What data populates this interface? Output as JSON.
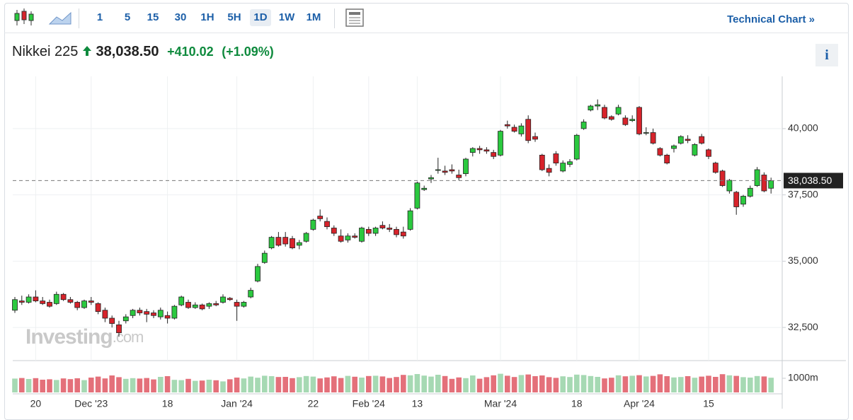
{
  "toolbar": {
    "intervals": [
      "1",
      "5",
      "15",
      "30",
      "1H",
      "5H",
      "1D",
      "1W",
      "1M"
    ],
    "active_interval": "1D",
    "technical_link": "Technical Chart »"
  },
  "header": {
    "name": "Nikkei 225",
    "price": "38,038.50",
    "change": "+410.02",
    "change_pct": "(+1.09%)",
    "info": "i"
  },
  "chart_data": {
    "type": "candlestick",
    "watermark": "Investing",
    "watermark_suffix": ".com",
    "categories": [
      null,
      null,
      null,
      "20",
      null,
      null,
      null,
      null,
      null,
      null,
      null,
      "Dec '23",
      null,
      null,
      null,
      null,
      null,
      null,
      null,
      null,
      null,
      null,
      "18",
      null,
      null,
      null,
      null,
      null,
      null,
      null,
      null,
      null,
      "Jan '24",
      null,
      null,
      null,
      null,
      null,
      null,
      null,
      null,
      null,
      null,
      "22",
      null,
      null,
      null,
      null,
      null,
      null,
      null,
      "Feb '24",
      null,
      null,
      null,
      null,
      null,
      null,
      "13",
      null,
      null,
      null,
      null,
      null,
      null,
      null,
      null,
      null,
      null,
      null,
      "Mar '24",
      null,
      null,
      null,
      null,
      null,
      null,
      null,
      null,
      null,
      null,
      "18",
      null,
      null,
      null,
      null,
      null,
      null,
      null,
      null,
      "Apr '24",
      null,
      null,
      null,
      null,
      null,
      null,
      null,
      null,
      null,
      "15",
      null,
      null,
      null,
      null,
      null,
      null,
      null,
      null,
      null
    ],
    "ohlc": [
      [
        33150,
        33650,
        33050,
        33550
      ],
      [
        33500,
        33700,
        33350,
        33450
      ],
      [
        33450,
        33750,
        33400,
        33650
      ],
      [
        33650,
        33900,
        33450,
        33500
      ],
      [
        33500,
        33650,
        33350,
        33400
      ],
      [
        33450,
        33550,
        33250,
        33300
      ],
      [
        33400,
        33850,
        33350,
        33750
      ],
      [
        33750,
        33800,
        33500,
        33550
      ],
      [
        33550,
        33650,
        33400,
        33450
      ],
      [
        33450,
        33500,
        33150,
        33250
      ],
      [
        33250,
        33550,
        33200,
        33500
      ],
      [
        33500,
        33650,
        33350,
        33450
      ],
      [
        33400,
        33450,
        33000,
        33100
      ],
      [
        33150,
        33250,
        32700,
        32850
      ],
      [
        32850,
        32950,
        32500,
        32650
      ],
      [
        32600,
        32750,
        32150,
        32300
      ],
      [
        32750,
        33000,
        32650,
        32900
      ],
      [
        32950,
        33200,
        32850,
        33150
      ],
      [
        33150,
        33250,
        32950,
        33050
      ],
      [
        33100,
        33200,
        32700,
        33000
      ],
      [
        33050,
        33150,
        32850,
        32950
      ],
      [
        32900,
        33250,
        32800,
        33150
      ],
      [
        32950,
        33100,
        32650,
        32850
      ],
      [
        32850,
        33350,
        32800,
        33300
      ],
      [
        33350,
        33700,
        33300,
        33650
      ],
      [
        33450,
        33550,
        33200,
        33250
      ],
      [
        33250,
        33450,
        33200,
        33350
      ],
      [
        33350,
        33400,
        33150,
        33200
      ],
      [
        33300,
        33450,
        33200,
        33400
      ],
      [
        33400,
        33500,
        33300,
        33350
      ],
      [
        33450,
        33750,
        33400,
        33650
      ],
      [
        33600,
        33650,
        33500,
        33550
      ],
      [
        33450,
        33550,
        32750,
        33300
      ],
      [
        33300,
        33500,
        33250,
        33450
      ],
      [
        33650,
        34000,
        33600,
        33900
      ],
      [
        34250,
        34900,
        34200,
        34800
      ],
      [
        34950,
        35400,
        34900,
        35300
      ],
      [
        35500,
        35950,
        35450,
        35900
      ],
      [
        35900,
        36100,
        35550,
        35600
      ],
      [
        35900,
        36100,
        35550,
        35650
      ],
      [
        35850,
        35950,
        35450,
        35500
      ],
      [
        35600,
        35800,
        35450,
        35700
      ],
      [
        35750,
        36100,
        35700,
        36050
      ],
      [
        36200,
        36600,
        36150,
        36550
      ],
      [
        36700,
        36950,
        36500,
        36600
      ],
      [
        36500,
        36650,
        36200,
        36300
      ],
      [
        36250,
        36350,
        35950,
        36050
      ],
      [
        35950,
        36200,
        35700,
        35750
      ],
      [
        35800,
        36050,
        35700,
        35950
      ],
      [
        35950,
        36050,
        35850,
        35900
      ],
      [
        35750,
        36300,
        35700,
        36250
      ],
      [
        36200,
        36300,
        35950,
        36050
      ],
      [
        36050,
        36300,
        35950,
        36250
      ],
      [
        36350,
        36500,
        36200,
        36250
      ],
      [
        36250,
        36400,
        36100,
        36200
      ],
      [
        36200,
        36300,
        35900,
        36000
      ],
      [
        36100,
        36300,
        35850,
        35950
      ],
      [
        36200,
        37000,
        36150,
        36900
      ],
      [
        37000,
        38000,
        36950,
        37950
      ],
      [
        37700,
        37850,
        37650,
        37750
      ],
      [
        38100,
        38250,
        37950,
        38150
      ],
      [
        38450,
        38900,
        38300,
        38450
      ],
      [
        38400,
        38600,
        38250,
        38350
      ],
      [
        38450,
        38650,
        38300,
        38400
      ],
      [
        38250,
        38450,
        38050,
        38150
      ],
      [
        38300,
        38900,
        38200,
        38850
      ],
      [
        39100,
        39300,
        38950,
        39250
      ],
      [
        39250,
        39350,
        39050,
        39200
      ],
      [
        39200,
        39300,
        39050,
        39150
      ],
      [
        39100,
        39200,
        38850,
        38950
      ],
      [
        39000,
        39950,
        38950,
        39900
      ],
      [
        40150,
        40300,
        40000,
        40100
      ],
      [
        40050,
        40150,
        39850,
        39900
      ],
      [
        39800,
        40200,
        39700,
        40100
      ],
      [
        40350,
        40500,
        39450,
        39550
      ],
      [
        39700,
        39850,
        39500,
        39600
      ],
      [
        39000,
        39050,
        38400,
        38450
      ],
      [
        38500,
        38650,
        38200,
        38350
      ],
      [
        39050,
        39150,
        38600,
        38700
      ],
      [
        38400,
        38800,
        38350,
        38700
      ],
      [
        38650,
        38850,
        38550,
        38750
      ],
      [
        38850,
        39800,
        38800,
        39750
      ],
      [
        40000,
        40350,
        39950,
        40250
      ],
      [
        40700,
        40900,
        40650,
        40850
      ],
      [
        40850,
        41100,
        40700,
        40900
      ],
      [
        40800,
        40900,
        40350,
        40400
      ],
      [
        40450,
        40500,
        40300,
        40350
      ],
      [
        40550,
        40900,
        40500,
        40800
      ],
      [
        40400,
        40500,
        40100,
        40150
      ],
      [
        40300,
        40500,
        40250,
        40350
      ],
      [
        40800,
        40850,
        39750,
        39800
      ],
      [
        39850,
        40050,
        39750,
        39850
      ],
      [
        39850,
        40000,
        39400,
        39450
      ],
      [
        39250,
        39300,
        38950,
        39000
      ],
      [
        39000,
        39050,
        38650,
        38700
      ],
      [
        39250,
        39400,
        39100,
        39350
      ],
      [
        39450,
        39750,
        39400,
        39700
      ],
      [
        39600,
        39750,
        39450,
        39550
      ],
      [
        39000,
        39450,
        38950,
        39400
      ],
      [
        39700,
        39800,
        39400,
        39450
      ],
      [
        39200,
        39250,
        38850,
        38950
      ],
      [
        38700,
        38750,
        38300,
        38350
      ],
      [
        38400,
        38450,
        37800,
        37850
      ],
      [
        37650,
        38100,
        37550,
        38050
      ],
      [
        37600,
        37650,
        36750,
        37050
      ],
      [
        37150,
        37500,
        37050,
        37450
      ],
      [
        37450,
        37850,
        37400,
        37750
      ],
      [
        37850,
        38550,
        37800,
        38450
      ],
      [
        38250,
        38350,
        37600,
        37650
      ],
      [
        37750,
        38150,
        37550,
        38038.5
      ]
    ],
    "volume": [
      980,
      1020,
      950,
      1010,
      900,
      930,
      880,
      990,
      940,
      1000,
      870,
      1050,
      1120,
      990,
      1200,
      1080,
      960,
      1010,
      980,
      1020,
      920,
      1100,
      1150,
      890,
      870,
      960,
      820,
      840,
      900,
      860,
      780,
      930,
      1050,
      990,
      1120,
      1040,
      1180,
      1150,
      1090,
      1100,
      1010,
      1080,
      1160,
      1120,
      990,
      1060,
      1140,
      1020,
      1170,
      1110,
      1050,
      1160,
      1180,
      1130,
      1020,
      1090,
      1240,
      1210,
      1300,
      1190,
      1120,
      1250,
      1160,
      960,
      1060,
      1010,
      1200,
      970,
      1080,
      1210,
      1320,
      1180,
      1090,
      1230,
      1270,
      1150,
      1200,
      1080,
      1030,
      1140,
      1090,
      1260,
      1230,
      1160,
      1100,
      990,
      1040,
      1210,
      1140,
      1180,
      1220,
      1130,
      1170,
      1280,
      1150,
      1060,
      1090,
      1150,
      1040,
      1120,
      1180,
      1100,
      1290,
      1210,
      1170,
      1080,
      1050,
      1160,
      1130,
      1040
    ],
    "up_color": "#2bc93f",
    "down_color": "#d7232b",
    "volume_up_color": "#a6d9b3",
    "volume_down_color": "#e4707a",
    "ylim": [
      31250,
      41970
    ],
    "yticks": [
      {
        "value": 32500,
        "label": "32,500"
      },
      {
        "value": 35000,
        "label": "35,000"
      },
      {
        "value": 37500,
        "label": "37,500"
      },
      {
        "value": 40000,
        "label": "40,000"
      }
    ],
    "volume_lim": [
      0,
      2150
    ],
    "volume_ticks": [
      {
        "value": 1000,
        "label": "1000m"
      }
    ],
    "grid": true
  }
}
